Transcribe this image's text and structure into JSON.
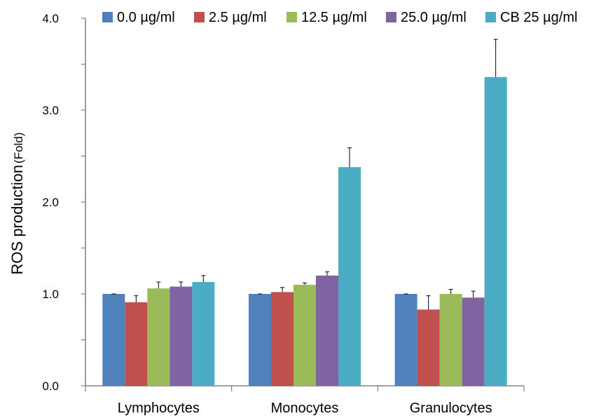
{
  "chart_data": {
    "type": "bar",
    "title": "",
    "xlabel": "",
    "ylabel": "ROS production",
    "ylabel_unit": "(Fold)",
    "ylim": [
      0,
      4.0
    ],
    "yticks": [
      "0.0",
      "1.0",
      "2.0",
      "3.0",
      "4.0"
    ],
    "ytick_values": [
      0,
      1,
      2,
      3,
      4
    ],
    "grid": false,
    "legend_position": "top",
    "categories": [
      "Lymphocytes",
      "Monocytes",
      "Granulocytes"
    ],
    "series": [
      {
        "name": "0.0 µg/ml",
        "color": "#4F81BD",
        "values": [
          1.0,
          1.0,
          1.0
        ],
        "errors": [
          0.0,
          0.0,
          0.0
        ]
      },
      {
        "name": "2.5 µg/ml",
        "color": "#C0504D",
        "values": [
          0.91,
          1.02,
          0.83
        ],
        "errors": [
          0.07,
          0.05,
          0.15
        ]
      },
      {
        "name": "12.5 µg/ml",
        "color": "#9BBB59",
        "values": [
          1.06,
          1.1,
          1.0
        ],
        "errors": [
          0.07,
          0.02,
          0.05
        ]
      },
      {
        "name": "25.0 µg/ml",
        "color": "#8064A2",
        "values": [
          1.08,
          1.2,
          0.96
        ],
        "errors": [
          0.05,
          0.04,
          0.07
        ]
      },
      {
        "name": "CB 25 µg/ml",
        "color": "#4BACC6",
        "values": [
          1.13,
          2.38,
          3.36
        ],
        "errors": [
          0.07,
          0.21,
          0.41
        ]
      }
    ]
  }
}
